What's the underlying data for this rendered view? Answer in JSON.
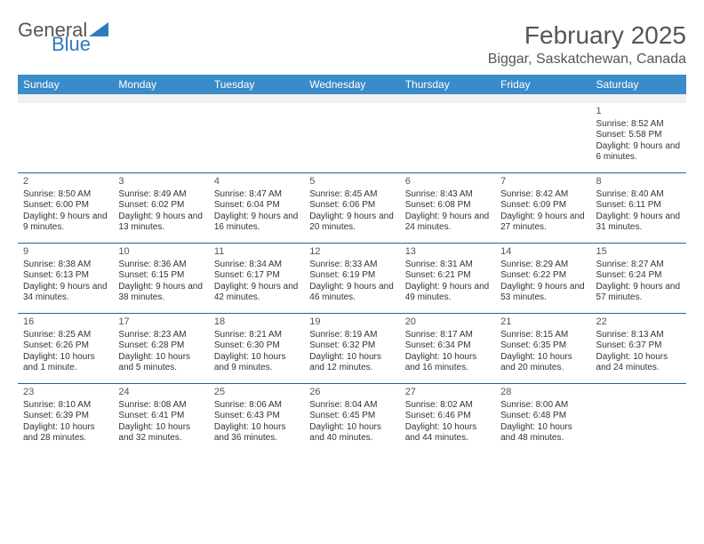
{
  "logo": {
    "word1": "General",
    "word2": "Blue"
  },
  "title": "February 2025",
  "location": "Biggar, Saskatchewan, Canada",
  "colors": {
    "header_bg": "#3a8bc9",
    "header_text": "#ffffff",
    "divider": "#2f5f8a",
    "text": "#333333",
    "title": "#555555",
    "logo_blue": "#2f7abf",
    "spacer": "#f0f0f0",
    "background": "#ffffff"
  },
  "dow": [
    "Sunday",
    "Monday",
    "Tuesday",
    "Wednesday",
    "Thursday",
    "Friday",
    "Saturday"
  ],
  "weeks": [
    [
      null,
      null,
      null,
      null,
      null,
      null,
      {
        "n": "1",
        "sr": "Sunrise: 8:52 AM",
        "ss": "Sunset: 5:58 PM",
        "dl": "Daylight: 9 hours and 6 minutes."
      }
    ],
    [
      {
        "n": "2",
        "sr": "Sunrise: 8:50 AM",
        "ss": "Sunset: 6:00 PM",
        "dl": "Daylight: 9 hours and 9 minutes."
      },
      {
        "n": "3",
        "sr": "Sunrise: 8:49 AM",
        "ss": "Sunset: 6:02 PM",
        "dl": "Daylight: 9 hours and 13 minutes."
      },
      {
        "n": "4",
        "sr": "Sunrise: 8:47 AM",
        "ss": "Sunset: 6:04 PM",
        "dl": "Daylight: 9 hours and 16 minutes."
      },
      {
        "n": "5",
        "sr": "Sunrise: 8:45 AM",
        "ss": "Sunset: 6:06 PM",
        "dl": "Daylight: 9 hours and 20 minutes."
      },
      {
        "n": "6",
        "sr": "Sunrise: 8:43 AM",
        "ss": "Sunset: 6:08 PM",
        "dl": "Daylight: 9 hours and 24 minutes."
      },
      {
        "n": "7",
        "sr": "Sunrise: 8:42 AM",
        "ss": "Sunset: 6:09 PM",
        "dl": "Daylight: 9 hours and 27 minutes."
      },
      {
        "n": "8",
        "sr": "Sunrise: 8:40 AM",
        "ss": "Sunset: 6:11 PM",
        "dl": "Daylight: 9 hours and 31 minutes."
      }
    ],
    [
      {
        "n": "9",
        "sr": "Sunrise: 8:38 AM",
        "ss": "Sunset: 6:13 PM",
        "dl": "Daylight: 9 hours and 34 minutes."
      },
      {
        "n": "10",
        "sr": "Sunrise: 8:36 AM",
        "ss": "Sunset: 6:15 PM",
        "dl": "Daylight: 9 hours and 38 minutes."
      },
      {
        "n": "11",
        "sr": "Sunrise: 8:34 AM",
        "ss": "Sunset: 6:17 PM",
        "dl": "Daylight: 9 hours and 42 minutes."
      },
      {
        "n": "12",
        "sr": "Sunrise: 8:33 AM",
        "ss": "Sunset: 6:19 PM",
        "dl": "Daylight: 9 hours and 46 minutes."
      },
      {
        "n": "13",
        "sr": "Sunrise: 8:31 AM",
        "ss": "Sunset: 6:21 PM",
        "dl": "Daylight: 9 hours and 49 minutes."
      },
      {
        "n": "14",
        "sr": "Sunrise: 8:29 AM",
        "ss": "Sunset: 6:22 PM",
        "dl": "Daylight: 9 hours and 53 minutes."
      },
      {
        "n": "15",
        "sr": "Sunrise: 8:27 AM",
        "ss": "Sunset: 6:24 PM",
        "dl": "Daylight: 9 hours and 57 minutes."
      }
    ],
    [
      {
        "n": "16",
        "sr": "Sunrise: 8:25 AM",
        "ss": "Sunset: 6:26 PM",
        "dl": "Daylight: 10 hours and 1 minute."
      },
      {
        "n": "17",
        "sr": "Sunrise: 8:23 AM",
        "ss": "Sunset: 6:28 PM",
        "dl": "Daylight: 10 hours and 5 minutes."
      },
      {
        "n": "18",
        "sr": "Sunrise: 8:21 AM",
        "ss": "Sunset: 6:30 PM",
        "dl": "Daylight: 10 hours and 9 minutes."
      },
      {
        "n": "19",
        "sr": "Sunrise: 8:19 AM",
        "ss": "Sunset: 6:32 PM",
        "dl": "Daylight: 10 hours and 12 minutes."
      },
      {
        "n": "20",
        "sr": "Sunrise: 8:17 AM",
        "ss": "Sunset: 6:34 PM",
        "dl": "Daylight: 10 hours and 16 minutes."
      },
      {
        "n": "21",
        "sr": "Sunrise: 8:15 AM",
        "ss": "Sunset: 6:35 PM",
        "dl": "Daylight: 10 hours and 20 minutes."
      },
      {
        "n": "22",
        "sr": "Sunrise: 8:13 AM",
        "ss": "Sunset: 6:37 PM",
        "dl": "Daylight: 10 hours and 24 minutes."
      }
    ],
    [
      {
        "n": "23",
        "sr": "Sunrise: 8:10 AM",
        "ss": "Sunset: 6:39 PM",
        "dl": "Daylight: 10 hours and 28 minutes."
      },
      {
        "n": "24",
        "sr": "Sunrise: 8:08 AM",
        "ss": "Sunset: 6:41 PM",
        "dl": "Daylight: 10 hours and 32 minutes."
      },
      {
        "n": "25",
        "sr": "Sunrise: 8:06 AM",
        "ss": "Sunset: 6:43 PM",
        "dl": "Daylight: 10 hours and 36 minutes."
      },
      {
        "n": "26",
        "sr": "Sunrise: 8:04 AM",
        "ss": "Sunset: 6:45 PM",
        "dl": "Daylight: 10 hours and 40 minutes."
      },
      {
        "n": "27",
        "sr": "Sunrise: 8:02 AM",
        "ss": "Sunset: 6:46 PM",
        "dl": "Daylight: 10 hours and 44 minutes."
      },
      {
        "n": "28",
        "sr": "Sunrise: 8:00 AM",
        "ss": "Sunset: 6:48 PM",
        "dl": "Daylight: 10 hours and 48 minutes."
      },
      null
    ]
  ]
}
